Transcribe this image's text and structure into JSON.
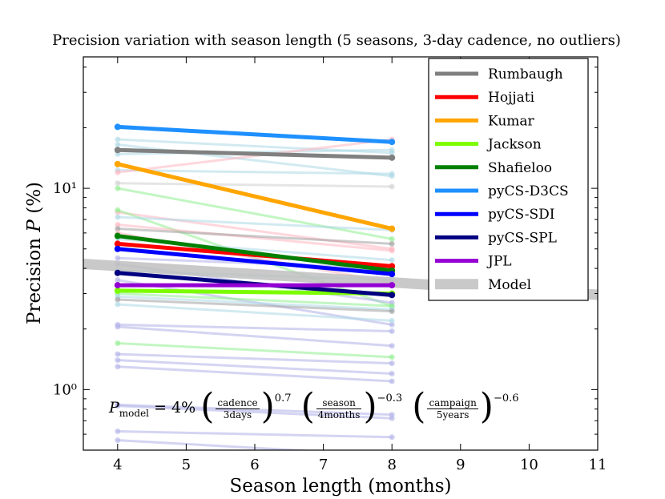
{
  "chart_data": {
    "type": "line",
    "title": "Precision variation with season length (5 seasons, 3-day cadence, no outliers)",
    "xlabel": "Season length (months)",
    "ylabel": "Precision P (%)",
    "ylabel_parts": {
      "pre": "Precision ",
      "var": "P",
      "post": " (%)"
    },
    "xlim": [
      3.5,
      11
    ],
    "ylim": [
      0.5,
      45
    ],
    "yscale": "log",
    "xticks": [
      4,
      5,
      6,
      7,
      8,
      9,
      10,
      11
    ],
    "yticks": [
      {
        "value": 1,
        "label": "10⁰"
      },
      {
        "value": 10,
        "label": "10¹"
      }
    ],
    "grid": false,
    "legend_position": "top-right",
    "series": [
      {
        "name": "Rumbaugh",
        "color": "#808080",
        "x": [
          4,
          8
        ],
        "y": [
          15.5,
          14.2
        ]
      },
      {
        "name": "Hojjati",
        "color": "#ff0000",
        "x": [
          4,
          8
        ],
        "y": [
          5.3,
          4.1
        ]
      },
      {
        "name": "Kumar",
        "color": "#ffa500",
        "x": [
          4,
          8
        ],
        "y": [
          13.2,
          6.3
        ]
      },
      {
        "name": "Jackson",
        "color": "#7cfc00",
        "x": [
          4,
          8
        ],
        "y": [
          3.1,
          3.0
        ]
      },
      {
        "name": "Shafieloo",
        "color": "#008000",
        "x": [
          4,
          8
        ],
        "y": [
          5.8,
          3.9
        ]
      },
      {
        "name": "pyCS-D3CS",
        "color": "#1e90ff",
        "x": [
          4,
          8
        ],
        "y": [
          20.2,
          17.0
        ]
      },
      {
        "name": "pyCS-SDI",
        "color": "#0000ff",
        "x": [
          4,
          8
        ],
        "y": [
          5.0,
          3.75
        ]
      },
      {
        "name": "pyCS-SPL",
        "color": "#000080",
        "x": [
          4,
          8
        ],
        "y": [
          3.8,
          2.95
        ]
      },
      {
        "name": "JPL",
        "color": "#9400d3",
        "x": [
          4,
          8
        ],
        "y": [
          3.3,
          3.3
        ]
      },
      {
        "name": "Model",
        "color": "#c0c0c0",
        "x": [
          3.5,
          11
        ],
        "y": [
          4.21,
          2.96
        ]
      }
    ],
    "background_lines": [
      {
        "color": "#add8e6",
        "y": [
          17.5,
          15.0
        ]
      },
      {
        "color": "#add8e6",
        "y": [
          16.5,
          11.5
        ]
      },
      {
        "color": "#add8e6",
        "y": [
          14.8,
          15.5
        ]
      },
      {
        "color": "#add8e6",
        "y": [
          12.3,
          11.8
        ]
      },
      {
        "color": "#ffb6c1",
        "y": [
          12.0,
          17.5
        ]
      },
      {
        "color": "#d0d0d0",
        "y": [
          10.6,
          10.2
        ]
      },
      {
        "color": "#90ee90",
        "y": [
          10.0,
          5.6
        ]
      },
      {
        "color": "#ffb6c1",
        "y": [
          7.6,
          5.0
        ]
      },
      {
        "color": "#90ee90",
        "y": [
          7.8,
          2.6
        ]
      },
      {
        "color": "#add8e6",
        "y": [
          7.2,
          6.2
        ]
      },
      {
        "color": "#ffb6c1",
        "y": [
          6.6,
          4.9
        ]
      },
      {
        "color": "#a0a0a0",
        "y": [
          6.3,
          5.3
        ]
      },
      {
        "color": "#ffb6c1",
        "y": [
          6.0,
          3.4
        ]
      },
      {
        "color": "#add8e6",
        "y": [
          5.6,
          4.4
        ]
      },
      {
        "color": "#b0b0e8",
        "y": [
          4.5,
          4.0
        ]
      },
      {
        "color": "#b0b0e8",
        "y": [
          4.2,
          2.7
        ]
      },
      {
        "color": "#add8e6",
        "y": [
          3.9,
          3.5
        ]
      },
      {
        "color": "#b0b0e8",
        "y": [
          3.5,
          2.1
        ]
      },
      {
        "color": "#90ee90",
        "y": [
          3.0,
          2.6
        ]
      },
      {
        "color": "#add8e6",
        "y": [
          2.9,
          2.5
        ]
      },
      {
        "color": "#a0a0a0",
        "y": [
          2.8,
          2.45
        ]
      },
      {
        "color": "#add8e6",
        "y": [
          2.65,
          2.2
        ]
      },
      {
        "color": "#b0b0e8",
        "y": [
          2.1,
          1.95
        ]
      },
      {
        "color": "#b0b0e8",
        "y": [
          2.05,
          1.65
        ]
      },
      {
        "color": "#90ee90",
        "y": [
          1.7,
          1.45
        ]
      },
      {
        "color": "#b0b0e8",
        "y": [
          1.5,
          1.35
        ]
      },
      {
        "color": "#b0b0e8",
        "y": [
          1.4,
          1.2
        ]
      },
      {
        "color": "#b0b0e8",
        "y": [
          1.3,
          1.1
        ]
      },
      {
        "color": "#b0b0e8",
        "y": [
          0.84,
          0.75
        ]
      },
      {
        "color": "#b0b0e8",
        "y": [
          0.83,
          0.72
        ]
      },
      {
        "color": "#b0b0e8",
        "y": [
          0.62,
          0.58
        ]
      },
      {
        "color": "#b0b0e8",
        "y": [
          0.56,
          0.47
        ]
      }
    ],
    "annotation": {
      "lhs_var": "P",
      "lhs_sub": "model",
      "equals": "= 4%",
      "f1_num": "cadence",
      "f1_den": "3days",
      "f1_exp": "0.7",
      "f2_num": "season",
      "f2_den": "4months",
      "f2_exp": "−0.3",
      "f3_num": "campaign",
      "f3_den": "5years",
      "f3_exp": "−0.6"
    }
  }
}
